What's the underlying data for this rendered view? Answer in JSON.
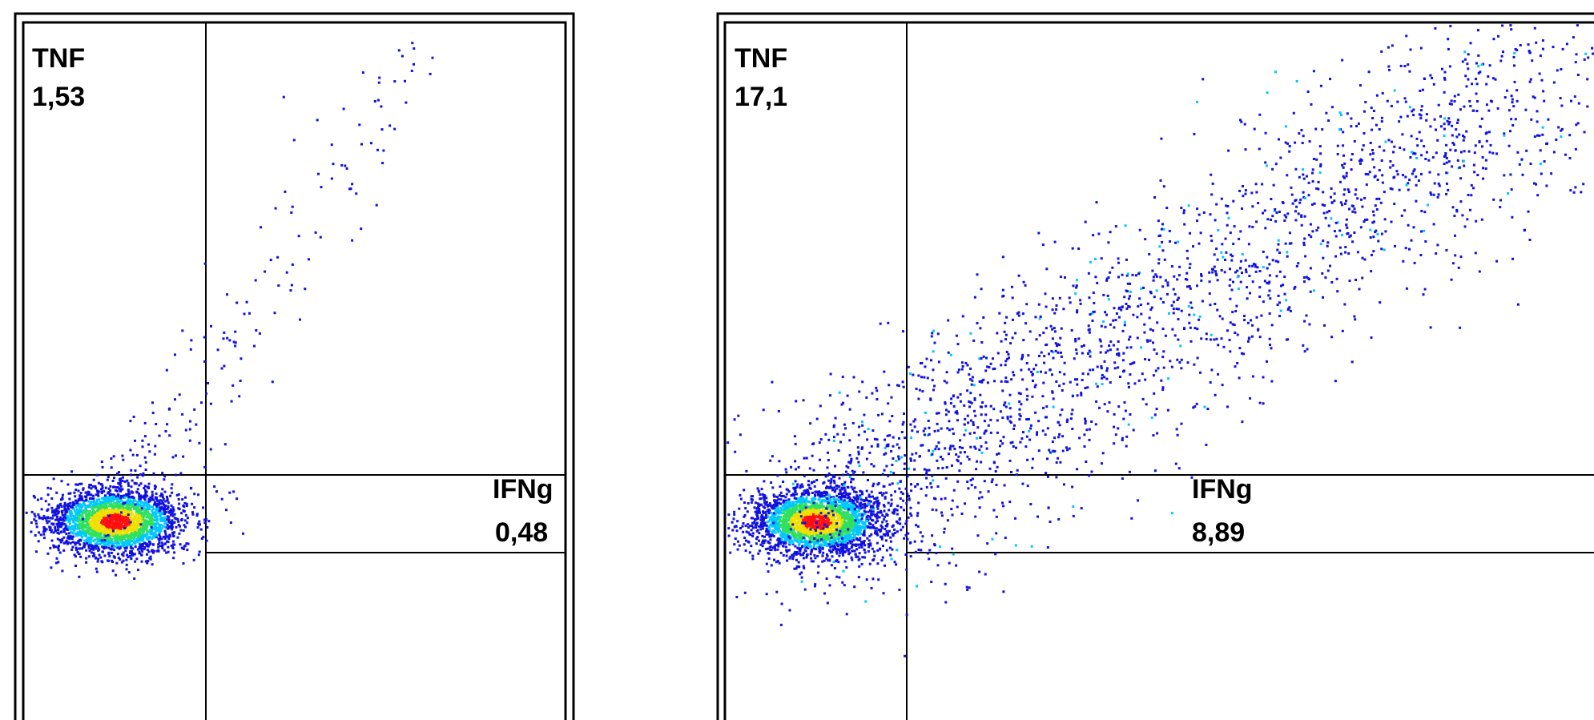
{
  "chart_data": [
    {
      "type": "scatter",
      "title": "",
      "xlabel": "",
      "ylabel": "",
      "quadrant_labels": {
        "upper_left": {
          "name": "TNF",
          "value": "1,53"
        },
        "lower_right": {
          "name": "IFNg",
          "value": "0,48"
        }
      },
      "density": {
        "main_population": {
          "center": [
            0.12,
            0.06
          ],
          "count": 2600
        },
        "scatter_events": 210
      }
    },
    {
      "type": "scatter",
      "title": "",
      "xlabel": "",
      "ylabel": "",
      "quadrant_labels": {
        "upper_left": {
          "name": "TNF",
          "value": "17,1"
        },
        "lower_right": {
          "name": "IFNg",
          "value": "8,89"
        }
      },
      "density": {
        "main_population": {
          "center": [
            0.12,
            0.06
          ],
          "count": 2600
        },
        "scatter_events": 2400
      }
    }
  ],
  "colors": {
    "low": "#1010e0",
    "mid_low": "#00c8ff",
    "mid": "#30e060",
    "mid_high": "#f0e000",
    "high": "#ff1010"
  }
}
